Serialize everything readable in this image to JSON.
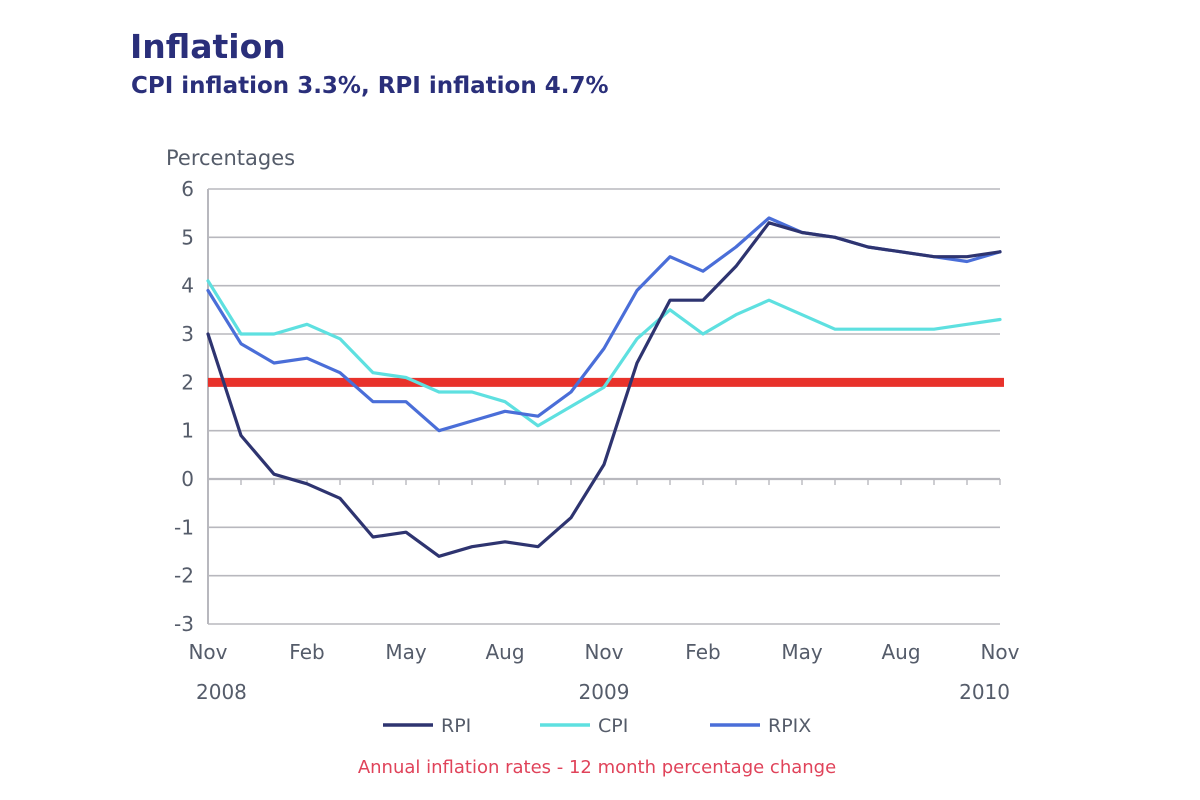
{
  "colors": {
    "title": "#2a2f7a",
    "text": "#555c6a",
    "grid": "#b8b8be",
    "target": "#e8322b",
    "caption": "#e0435a"
  },
  "chart_data": {
    "type": "line",
    "title": "Inflation",
    "subtitle": "CPI inflation 3.3%, RPI inflation 4.7%",
    "ylabel": "Percentages",
    "xlabel": "",
    "caption": "Annual inflation rates - 12 month percentage change",
    "ylim": [
      -3,
      6
    ],
    "yticks": [
      -3,
      -2,
      -1,
      0,
      1,
      2,
      3,
      4,
      5,
      6
    ],
    "yticklabels": [
      "-3",
      "-2",
      "-1",
      "0",
      "1",
      "2",
      "3",
      "4",
      "5",
      "6"
    ],
    "xlim": [
      0,
      24
    ],
    "x_ticks": [
      0,
      3,
      6,
      9,
      12,
      15,
      18,
      21,
      24
    ],
    "x_tick_labels": [
      "Nov",
      "Feb",
      "May",
      "Aug",
      "Nov",
      "Feb",
      "May",
      "Aug",
      "Nov"
    ],
    "year_labels": [
      {
        "x": 0,
        "label": "2008"
      },
      {
        "x": 12,
        "label": "2009"
      },
      {
        "x": 24,
        "label": "2010"
      }
    ],
    "grid": true,
    "legend_position": "bottom",
    "target_line": {
      "value": 2,
      "color": "#e8322b"
    },
    "x": [
      0,
      1,
      2,
      3,
      4,
      5,
      6,
      7,
      8,
      9,
      10,
      11,
      12,
      13,
      14,
      15,
      16,
      17,
      18,
      19,
      20,
      21,
      22,
      23,
      24
    ],
    "series": [
      {
        "name": "RPI",
        "color": "#2e3470",
        "values": [
          3.0,
          0.9,
          0.1,
          -0.1,
          -0.4,
          -1.2,
          -1.1,
          -1.6,
          -1.4,
          -1.3,
          -1.4,
          -0.8,
          0.3,
          2.4,
          3.7,
          3.7,
          4.4,
          5.3,
          5.1,
          5.0,
          4.8,
          4.7,
          4.6,
          4.6,
          4.7
        ]
      },
      {
        "name": "CPI",
        "color": "#5ee0e0",
        "values": [
          4.1,
          3.0,
          3.0,
          3.2,
          2.9,
          2.2,
          2.1,
          1.8,
          1.8,
          1.6,
          1.1,
          1.5,
          1.9,
          2.9,
          3.5,
          3.0,
          3.4,
          3.7,
          3.4,
          3.1,
          3.1,
          3.1,
          3.1,
          3.2,
          3.3
        ]
      },
      {
        "name": "RPIX",
        "color": "#4a6ed8",
        "values": [
          3.9,
          2.8,
          2.4,
          2.5,
          2.2,
          1.6,
          1.6,
          1.0,
          1.2,
          1.4,
          1.3,
          1.8,
          2.7,
          3.9,
          4.6,
          4.3,
          4.8,
          5.4,
          5.1,
          5.0,
          4.8,
          4.7,
          4.6,
          4.5,
          4.7
        ]
      }
    ]
  }
}
